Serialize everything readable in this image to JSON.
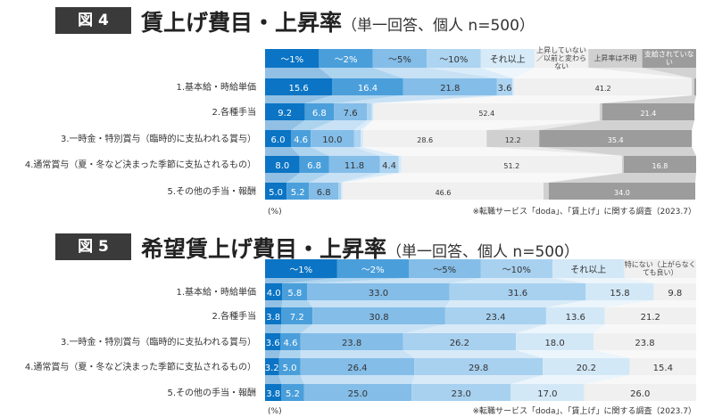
{
  "figures": [
    {
      "badge": "図 4",
      "title": "賃上げ費目・上昇率",
      "subtitle": "（単一回答、個人 n=500）",
      "legend": [
        "～1%",
        "～2%",
        "～5%",
        "～10%",
        "それ以上",
        "上昇していない／以前と変わらない",
        "上昇率は不明",
        "支給されていない"
      ],
      "unit_note": "(%)",
      "source_note": "※転職サービス「doda」、「賃上げ」に関する調査（2023.7）"
    },
    {
      "badge": "図 5",
      "title": "希望賃上げ費目・上昇率",
      "subtitle": "（単一回答、個人 n=500）",
      "legend": [
        "～1%",
        "～2%",
        "～5%",
        "～10%",
        "それ以上",
        "特にない（上がらなくても良い）"
      ],
      "unit_note": "(%)",
      "source_note": "※転職サービス「doda」、「賃上げ」に関する調査（2023.7）"
    }
  ],
  "chart_data": [
    {
      "type": "bar",
      "stacked": true,
      "orientation": "horizontal",
      "categories": [
        "1.基本給・時給単価",
        "2.各種手当",
        "3.一時金・特別賞与（臨時的に支払われる賞与）",
        "4.通常賞与（夏・冬など決まった季節に支払されるもの）",
        "5.その他の手当・報酬"
      ],
      "series": [
        {
          "name": "～1%",
          "color": "#0b74c4",
          "values": [
            15.6,
            9.2,
            6.0,
            8.0,
            5.0
          ]
        },
        {
          "name": "～2%",
          "color": "#4a9fdb",
          "values": [
            16.4,
            6.8,
            4.6,
            6.8,
            5.2
          ]
        },
        {
          "name": "～5%",
          "color": "#84bde8",
          "values": [
            21.8,
            7.6,
            10.0,
            11.8,
            6.8
          ]
        },
        {
          "name": "～10%",
          "color": "#add4f1",
          "values": [
            3.6,
            1.2,
            1.6,
            4.4,
            0.6
          ]
        },
        {
          "name": "それ以上",
          "color": "#d6eaf8",
          "values": [
            0.4,
            0.4,
            0.6,
            0.6,
            0.4
          ]
        },
        {
          "name": "上昇していない／以前と変わらない",
          "color": "#f0f0f0",
          "values": [
            41.2,
            52.4,
            28.6,
            51.2,
            46.6
          ]
        },
        {
          "name": "上昇率は不明",
          "color": "#d0d0d0",
          "values": [
            0.6,
            0.6,
            12.2,
            0.4,
            1.2
          ]
        },
        {
          "name": "支給されていない",
          "color": "#9c9c9c",
          "values": [
            0.4,
            21.4,
            35.4,
            16.8,
            34.0
          ]
        }
      ],
      "data_labels": [
        [
          "15.6",
          "16.4",
          "21.8",
          "3.6",
          "",
          "41.2",
          "",
          ""
        ],
        [
          "9.2",
          "6.8",
          "7.6",
          "",
          "",
          "52.4",
          "",
          "21.4"
        ],
        [
          "6.0",
          "4.6",
          "10.0",
          "",
          "",
          "28.6",
          "12.2",
          "35.4"
        ],
        [
          "8.0",
          "6.8",
          "11.8",
          "4.4",
          "",
          "51.2",
          "",
          "16.8"
        ],
        [
          "5.0",
          "5.2",
          "6.8",
          "",
          "",
          "46.6",
          "",
          "34.0"
        ]
      ],
      "xlim": [
        0,
        100
      ]
    },
    {
      "type": "bar",
      "stacked": true,
      "orientation": "horizontal",
      "categories": [
        "1.基本給・時給単価",
        "2.各種手当",
        "3.一時金・特別賞与（臨時的に支払われる賞与）",
        "4.通常賞与（夏・冬など決まった季節に支払されるもの）",
        "5.その他の手当・報酬"
      ],
      "series": [
        {
          "name": "～1%",
          "color": "#0b74c4",
          "values": [
            4.0,
            3.8,
            3.6,
            3.2,
            3.8
          ]
        },
        {
          "name": "～2%",
          "color": "#4a9fdb",
          "values": [
            5.8,
            7.2,
            4.6,
            5.0,
            5.2
          ]
        },
        {
          "name": "～5%",
          "color": "#84bde8",
          "values": [
            33.0,
            30.8,
            23.8,
            26.4,
            25.0
          ]
        },
        {
          "name": "～10%",
          "color": "#a8d1f0",
          "values": [
            31.6,
            23.4,
            26.2,
            29.8,
            23.0
          ]
        },
        {
          "name": "それ以上",
          "color": "#d3e8f7",
          "values": [
            15.8,
            13.6,
            18.0,
            20.2,
            17.0
          ]
        },
        {
          "name": "特にない（上がらなくても良い）",
          "color": "#f0f0f0",
          "values": [
            9.8,
            21.2,
            23.8,
            15.4,
            26.0
          ]
        }
      ],
      "data_labels": [
        [
          "4.0",
          "5.8",
          "33.0",
          "31.6",
          "15.8",
          "9.8"
        ],
        [
          "3.8",
          "7.2",
          "30.8",
          "23.4",
          "13.6",
          "21.2"
        ],
        [
          "3.6",
          "4.6",
          "23.8",
          "26.2",
          "18.0",
          "23.8"
        ],
        [
          "3.2",
          "5.0",
          "26.4",
          "29.8",
          "20.2",
          "15.4"
        ],
        [
          "3.8",
          "5.2",
          "25.0",
          "23.0",
          "17.0",
          "26.0"
        ]
      ],
      "xlim": [
        0,
        100
      ]
    }
  ]
}
